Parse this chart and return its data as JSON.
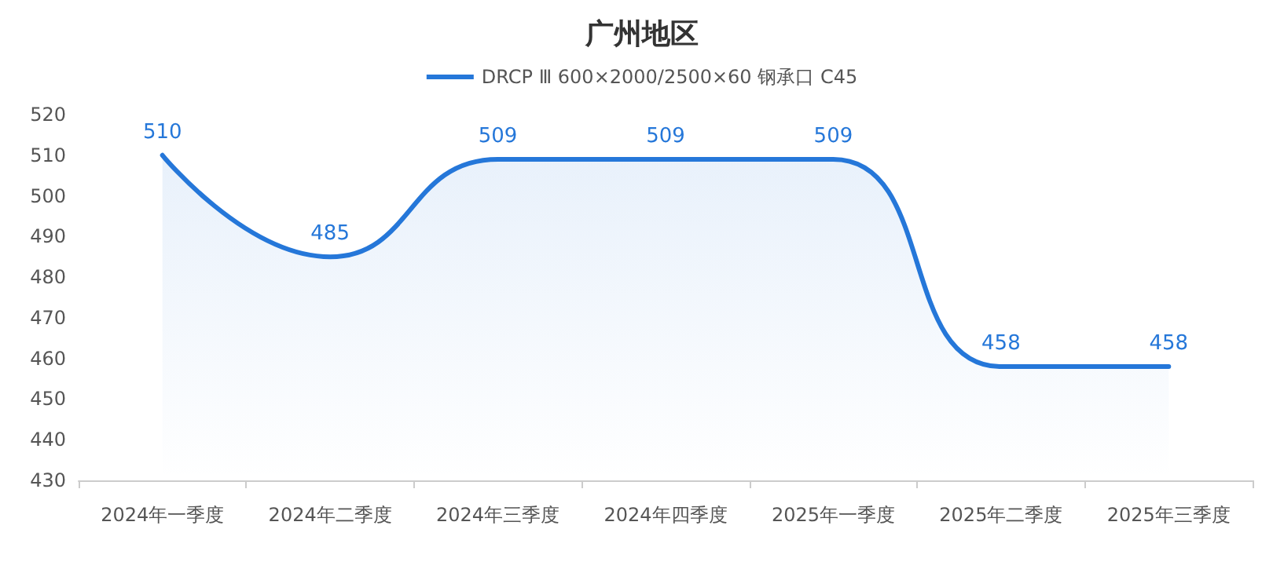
{
  "chart_data": {
    "type": "area",
    "title": "广州地区",
    "categories": [
      "2024年一季度",
      "2024年二季度",
      "2024年三季度",
      "2024年四季度",
      "2025年一季度",
      "2025年二季度",
      "2025年三季度"
    ],
    "series": [
      {
        "name": "DRCP Ⅲ 600×2000/2500×60 钢承口 C45",
        "color": "#2577d9",
        "values": [
          510,
          485,
          509,
          509,
          509,
          458,
          458
        ]
      }
    ],
    "ylim": [
      430,
      520
    ],
    "yticks": [
      430,
      440,
      450,
      460,
      470,
      480,
      490,
      500,
      510,
      520
    ],
    "grid": false,
    "legend": "top",
    "data_labels": true,
    "marker": "none",
    "line_style": "solid"
  }
}
